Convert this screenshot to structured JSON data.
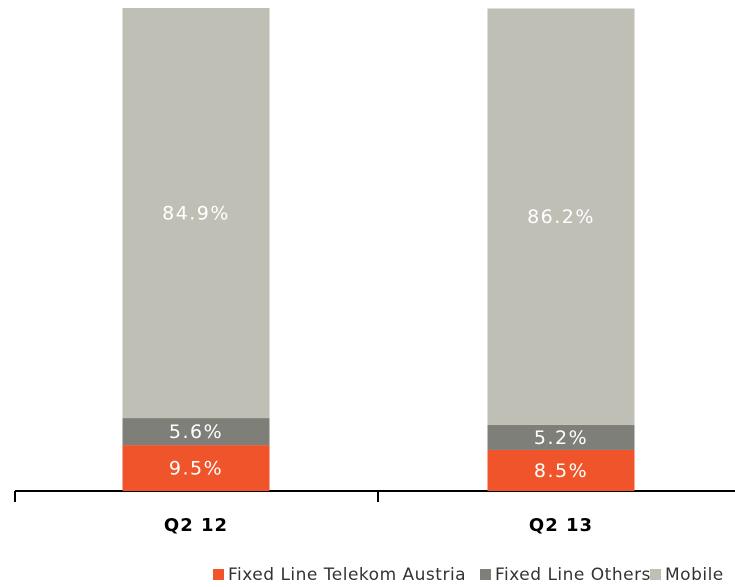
{
  "chart_data": {
    "type": "stacked_bar",
    "categories": [
      "Q2 12",
      "Q2 13"
    ],
    "series": [
      {
        "name": "Fixed Line Telekom Austria",
        "color": "#f0542a",
        "values": [
          9.5,
          8.5
        ],
        "value_labels": [
          "9.5%",
          "8.5%"
        ]
      },
      {
        "name": "Fixed Line Others",
        "color": "#7f7f79",
        "values": [
          5.6,
          5.2
        ],
        "value_labels": [
          "5.6%",
          "5.2%"
        ]
      },
      {
        "name": "Mobile",
        "color": "#bfbfb6",
        "values": [
          84.9,
          86.2
        ],
        "value_labels": [
          "84.9%",
          "86.2%"
        ]
      }
    ],
    "ylim": [
      0,
      100
    ]
  }
}
